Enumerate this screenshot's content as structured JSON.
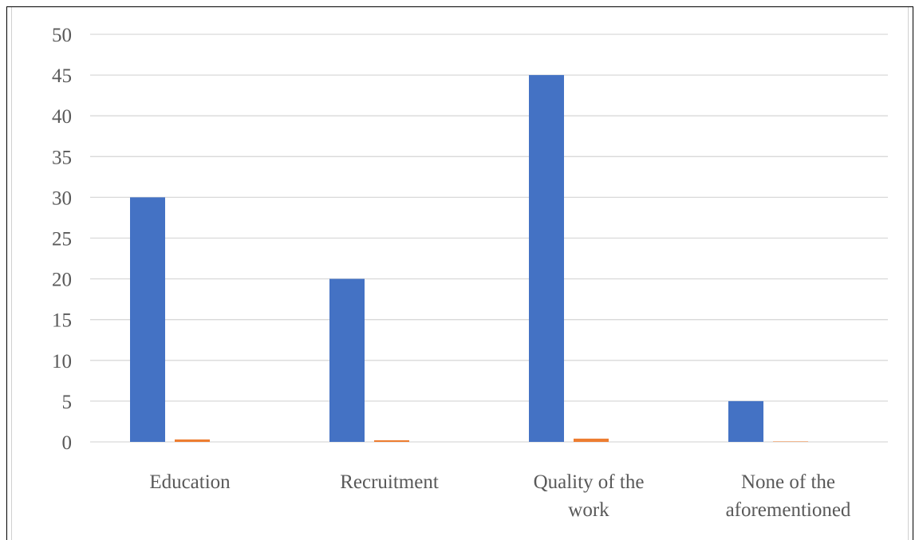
{
  "chart_data": {
    "type": "bar",
    "title": "",
    "xlabel": "",
    "ylabel": "",
    "ylim": [
      0,
      50
    ],
    "yticks": [
      0,
      5,
      10,
      15,
      20,
      25,
      30,
      35,
      40,
      45,
      50
    ],
    "grid": true,
    "categories": [
      [
        "Education"
      ],
      [
        "Recruitment"
      ],
      [
        "Quality of the",
        "work"
      ],
      [
        "None of the",
        "aforementioned"
      ]
    ],
    "series": [
      {
        "values": [
          30,
          20,
          45,
          5
        ],
        "color": "#4472C4"
      },
      {
        "values": [
          0.3,
          0.2,
          0.4,
          0.05
        ],
        "color": "#ED7D31"
      }
    ]
  }
}
